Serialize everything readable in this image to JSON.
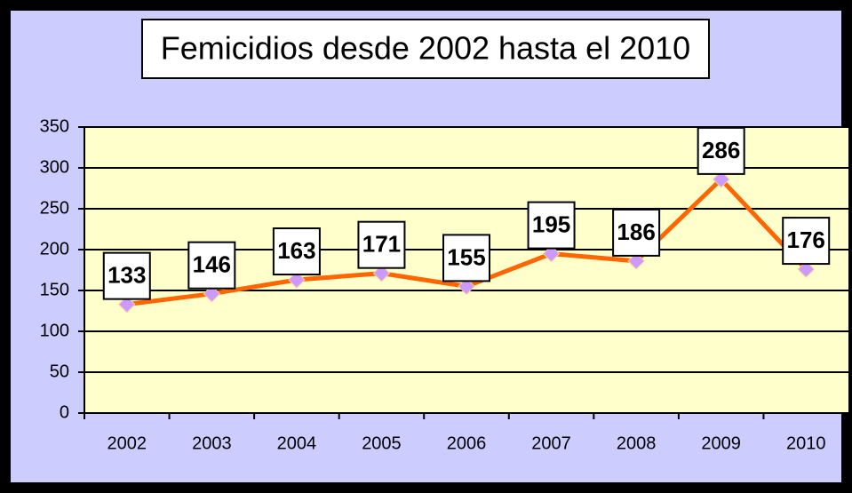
{
  "chart_data": {
    "type": "line",
    "title": "Femicidios desde 2002 hasta el 2010",
    "categories": [
      "2002",
      "2003",
      "2004",
      "2005",
      "2006",
      "2007",
      "2008",
      "2009",
      "2010"
    ],
    "values": [
      133,
      146,
      163,
      171,
      155,
      195,
      186,
      286,
      176
    ],
    "color": "#ff6600",
    "marker_color": "#cc99ff",
    "ylim": [
      0,
      350
    ],
    "yticks": [
      0,
      50,
      100,
      150,
      200,
      250,
      300,
      350
    ],
    "grid": true
  }
}
